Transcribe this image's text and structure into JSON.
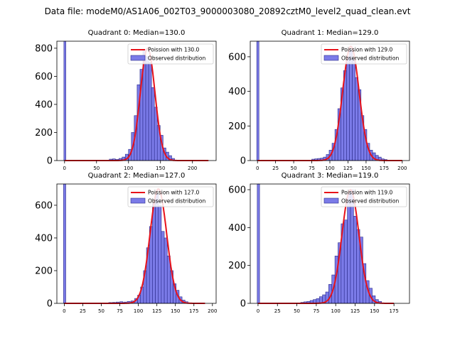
{
  "figure": {
    "suptitle": "Data file: modeM0/AS1A06_002T03_9000003080_20892cztM0_level2_quad_clean.evt"
  },
  "colors": {
    "hist_fill": "#7b7be8",
    "hist_edge": "#2a2a8a",
    "poisson_line": "#e8121a",
    "axis": "#000000"
  },
  "chart_data": [
    {
      "type": "bar",
      "title": "Quadrant 0: Median=130.0",
      "median": 130.0,
      "legend": {
        "line_label": "Poission with 130.0",
        "hist_label": "Observed distribution",
        "placement": "top-right"
      },
      "xlim": [
        -12,
        237
      ],
      "ylim": [
        0,
        850
      ],
      "xticks": [
        0,
        50,
        100,
        150,
        200
      ],
      "yticks": [
        0,
        200,
        400,
        600,
        800
      ],
      "bin_width": 4.5,
      "spike": {
        "x": 0,
        "value": 850
      },
      "bins": [
        [
          70,
          10
        ],
        [
          75,
          12
        ],
        [
          80,
          8
        ],
        [
          85,
          15
        ],
        [
          90,
          25
        ],
        [
          95,
          45
        ],
        [
          100,
          80
        ],
        [
          104.5,
          200
        ],
        [
          109,
          320
        ],
        [
          113.5,
          540
        ],
        [
          118,
          650
        ],
        [
          122.5,
          790
        ],
        [
          127,
          740
        ],
        [
          131.5,
          700
        ],
        [
          136,
          520
        ],
        [
          140.5,
          380
        ],
        [
          145,
          250
        ],
        [
          149.5,
          180
        ],
        [
          154,
          90
        ],
        [
          158.5,
          60
        ],
        [
          163,
          35
        ],
        [
          167.5,
          15
        ]
      ],
      "poisson_mean": 130.0,
      "poisson_range": [
        0,
        225
      ],
      "poisson_peak": 800
    },
    {
      "type": "bar",
      "title": "Quadrant 1: Median=129.0",
      "median": 129.0,
      "legend": {
        "line_label": "Poission with 129.0",
        "hist_label": "Observed distribution",
        "placement": "top-right"
      },
      "xlim": [
        -10,
        210
      ],
      "ylim": [
        0,
        690
      ],
      "xticks": [
        0,
        25,
        50,
        75,
        100,
        125,
        150,
        175,
        200
      ],
      "yticks": [
        0,
        200,
        400,
        600
      ],
      "bin_width": 4,
      "spike": {
        "x": 0,
        "value": 690
      },
      "bins": [
        [
          75,
          8
        ],
        [
          79,
          10
        ],
        [
          83,
          12
        ],
        [
          87,
          14
        ],
        [
          91,
          20
        ],
        [
          95,
          35
        ],
        [
          99,
          60
        ],
        [
          103,
          100
        ],
        [
          107,
          180
        ],
        [
          111,
          300
        ],
        [
          115,
          420
        ],
        [
          119,
          520
        ],
        [
          123,
          600
        ],
        [
          127,
          640
        ],
        [
          131,
          590
        ],
        [
          135,
          480
        ],
        [
          139,
          410
        ],
        [
          143,
          260
        ],
        [
          147,
          180
        ],
        [
          151,
          100
        ],
        [
          155,
          60
        ],
        [
          159,
          45
        ],
        [
          163,
          30
        ],
        [
          167,
          20
        ],
        [
          171,
          10
        ],
        [
          175,
          6
        ]
      ],
      "poisson_mean": 129.0,
      "poisson_range": [
        0,
        200
      ],
      "poisson_peak": 660
    },
    {
      "type": "bar",
      "title": "Quadrant 2: Median=127.0",
      "median": 127.0,
      "legend": {
        "line_label": "Poission with 127.0",
        "hist_label": "Observed distribution",
        "placement": "top-right"
      },
      "xlim": [
        -10,
        205
      ],
      "ylim": [
        0,
        730
      ],
      "xticks": [
        0,
        25,
        50,
        75,
        100,
        125,
        150,
        175,
        200
      ],
      "yticks": [
        0,
        200,
        400,
        600
      ],
      "bin_width": 4,
      "spike": {
        "x": 0,
        "value": 730
      },
      "bins": [
        [
          60,
          5
        ],
        [
          65,
          6
        ],
        [
          70,
          8
        ],
        [
          75,
          10
        ],
        [
          80,
          8
        ],
        [
          85,
          12
        ],
        [
          90,
          15
        ],
        [
          95,
          30
        ],
        [
          99,
          50
        ],
        [
          103,
          100
        ],
        [
          107,
          200
        ],
        [
          111,
          340
        ],
        [
          115,
          470
        ],
        [
          119,
          610
        ],
        [
          123,
          670
        ],
        [
          127,
          600
        ],
        [
          131,
          440
        ],
        [
          135,
          400
        ],
        [
          139,
          290
        ],
        [
          143,
          200
        ],
        [
          147,
          120
        ],
        [
          151,
          80
        ],
        [
          155,
          40
        ],
        [
          159,
          20
        ],
        [
          163,
          10
        ]
      ],
      "poisson_mean": 127.0,
      "poisson_range": [
        0,
        190
      ],
      "poisson_peak": 700
    },
    {
      "type": "bar",
      "title": "Quadrant 3: Median=119.0",
      "median": 119.0,
      "legend": {
        "line_label": "Poission with 119.0",
        "hist_label": "Observed distribution",
        "placement": "top-right"
      },
      "xlim": [
        -10,
        195
      ],
      "ylim": [
        0,
        630
      ],
      "xticks": [
        0,
        25,
        50,
        75,
        100,
        125,
        150,
        175
      ],
      "yticks": [
        0,
        200,
        400,
        600
      ],
      "bin_width": 4,
      "spike": {
        "x": 0,
        "value": 630
      },
      "bins": [
        [
          55,
          5
        ],
        [
          59,
          8
        ],
        [
          63,
          10
        ],
        [
          67,
          15
        ],
        [
          71,
          20
        ],
        [
          75,
          25
        ],
        [
          79,
          35
        ],
        [
          83,
          45
        ],
        [
          87,
          60
        ],
        [
          91,
          100
        ],
        [
          95,
          150
        ],
        [
          99,
          250
        ],
        [
          103,
          320
        ],
        [
          107,
          420
        ],
        [
          111,
          440
        ],
        [
          115,
          580
        ],
        [
          119,
          600
        ],
        [
          123,
          460
        ],
        [
          127,
          390
        ],
        [
          131,
          350
        ],
        [
          135,
          210
        ],
        [
          139,
          120
        ],
        [
          143,
          80
        ],
        [
          147,
          40
        ],
        [
          151,
          20
        ],
        [
          155,
          10
        ]
      ],
      "poisson_mean": 119.0,
      "poisson_range": [
        0,
        175
      ],
      "poisson_peak": 600
    }
  ]
}
